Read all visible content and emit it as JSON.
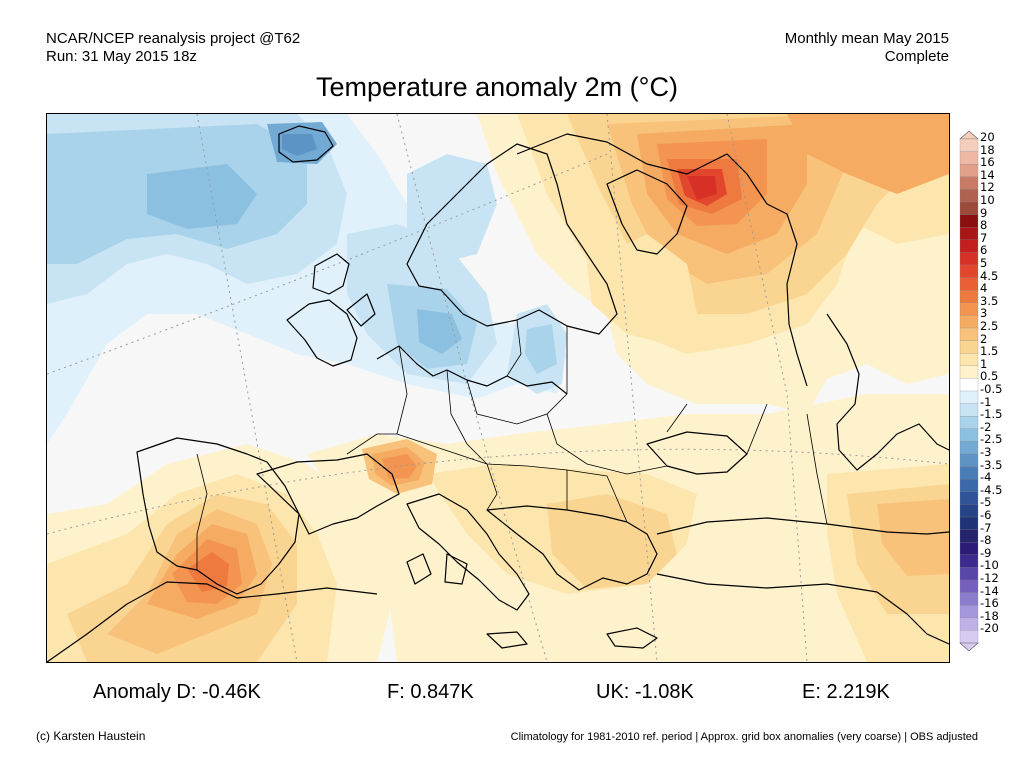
{
  "header": {
    "project": "NCAR/NCEP reanalysis project @T62",
    "run": "Run: 31 May 2015 18z",
    "period": "Monthly mean May 2015",
    "status": "Complete"
  },
  "title": "Temperature anomaly 2m (°C)",
  "colorbar": {
    "labels": [
      "20",
      "18",
      "16",
      "14",
      "12",
      "10",
      "9",
      "8",
      "7",
      "6",
      "5",
      "4.5",
      "4",
      "3.5",
      "3",
      "2.5",
      "2",
      "1.5",
      "1",
      "0.5",
      "-0.5",
      "-1",
      "-1.5",
      "-2",
      "-2.5",
      "-3",
      "-3.5",
      "-4",
      "-4.5",
      "-5",
      "-6",
      "-7",
      "-8",
      "-9",
      "-10",
      "-12",
      "-14",
      "-16",
      "-18",
      "-20"
    ],
    "colors": [
      "#f5cfbd",
      "#eeb8a4",
      "#e2a08a",
      "#c87c68",
      "#b0614f",
      "#9c4a3a",
      "#8a0f0f",
      "#a81616",
      "#c41f1f",
      "#d73027",
      "#e2472e",
      "#ea5f36",
      "#ef7a40",
      "#f39450",
      "#f6ab62",
      "#f8c27a",
      "#fad592",
      "#fce6ae",
      "#fdf2cc",
      "#ffffff",
      "#e1f1fb",
      "#c8e4f4",
      "#a9d3eb",
      "#8cc0e0",
      "#72aad3",
      "#5d94c5",
      "#4a7db8",
      "#3a68a9",
      "#2f5499",
      "#264387",
      "#1f3276",
      "#23246b",
      "#2c1c78",
      "#3d2a8e",
      "#5a45a8",
      "#7560bd",
      "#8d7ccd",
      "#a696dc",
      "#bfb0e8",
      "#d7cbf2"
    ]
  },
  "stats": {
    "anomaly_d": "Anomaly D: -0.46K",
    "f": "F: 0.847K",
    "uk": "UK: -1.08K",
    "e": "E: 2.219K"
  },
  "footer": {
    "credit": "(c) Karsten Haustein",
    "note": "Climatology for 1981-2010 ref. period | Approx. grid box anomalies (very coarse) | OBS adjusted"
  }
}
